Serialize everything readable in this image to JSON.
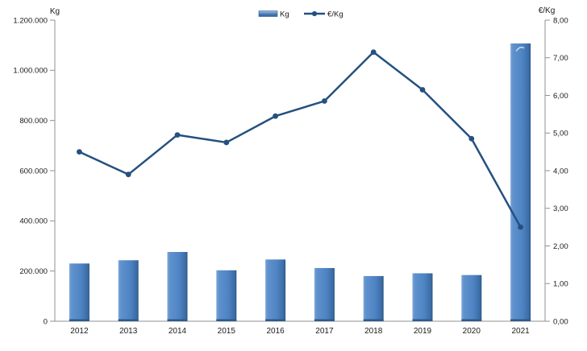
{
  "chart": {
    "left_axis_title": "Kg",
    "right_axis_title": "€/Kg",
    "legend": {
      "bar_label": "Kg",
      "line_label": "€/Kg"
    }
  },
  "chart_data": {
    "type": "combo",
    "subtype": [
      "bar",
      "line"
    ],
    "categories": [
      "2012",
      "2013",
      "2014",
      "2015",
      "2016",
      "2017",
      "2018",
      "2019",
      "2020",
      "2021"
    ],
    "series": [
      {
        "name": "Kg",
        "type": "bar",
        "axis": "left",
        "values": [
          230000,
          243000,
          276000,
          203000,
          246000,
          212000,
          180000,
          191000,
          184000,
          1107000
        ]
      },
      {
        "name": "€/Kg",
        "type": "line",
        "axis": "right",
        "values": [
          4.5,
          3.9,
          4.95,
          4.75,
          5.45,
          5.85,
          7.15,
          6.15,
          4.85,
          2.5
        ]
      }
    ],
    "left_axis": {
      "title": "Kg",
      "min": 0,
      "max": 1200000,
      "step": 200000,
      "tick_labels": [
        "0",
        "200.000",
        "400.000",
        "600.000",
        "800.000",
        "1.000.000",
        "1.200.000"
      ],
      "format": "thousands-dot"
    },
    "right_axis": {
      "title": "€/Kg",
      "min": 0,
      "max": 8,
      "step": 1,
      "tick_labels": [
        "0,00",
        "1,00",
        "2,00",
        "3,00",
        "4,00",
        "5,00",
        "6,00",
        "7,00",
        "8,00"
      ],
      "format": "decimal-comma"
    },
    "grid": false,
    "legend_position": "top-center",
    "colors": {
      "bar_fill": "#4f83c3",
      "bar_fill_light": "#7fa7d9",
      "bar_fill_dark": "#2b567f",
      "bar_bottom_band": "#2e5a8c",
      "line": "#24517f",
      "axis_line": "#909090",
      "text": "#1a1a1a",
      "bar_highlight_mark": "#cfe0f2"
    }
  }
}
